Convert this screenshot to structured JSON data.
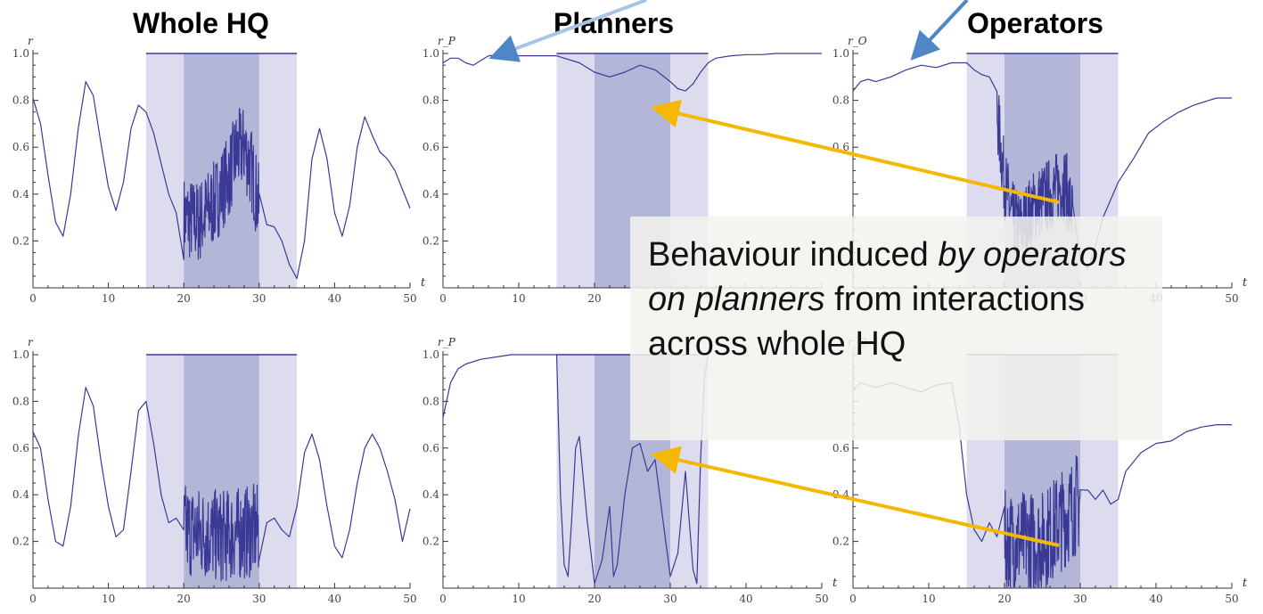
{
  "titles": {
    "whole": "Whole HQ",
    "planners": "Planners",
    "operators": "Operators"
  },
  "callout": {
    "part1": "Behaviour induced ",
    "part2": "by operators on planners",
    "part3": " from interactions across whole HQ"
  },
  "colors": {
    "line": "#3a3a96",
    "band_outer": "#dcdcee",
    "band_inner": "#b4b6d8",
    "arrow_orange": "#f5b800",
    "arrow_blue": "#4f86c6"
  },
  "chart_data": [
    {
      "type": "line",
      "row": 1,
      "col": 1,
      "ylabel": "r",
      "xlim": [
        0,
        50
      ],
      "ylim": [
        0,
        1
      ],
      "xticks": [
        0,
        10,
        20,
        30,
        40,
        50
      ],
      "yticks": [
        0.2,
        0.4,
        0.6,
        0.8,
        1.0
      ],
      "xlabel": "t",
      "bands": [
        [
          15,
          35
        ],
        [
          20,
          30
        ]
      ],
      "ref_line": {
        "y": 1.0,
        "x": [
          15,
          35
        ]
      },
      "series": [
        {
          "x": [
            0,
            1,
            2,
            3,
            4,
            5,
            6,
            7,
            8,
            9,
            10,
            11,
            12,
            13,
            14,
            15,
            16,
            17,
            18,
            19,
            20,
            22,
            24,
            26,
            27,
            28,
            29,
            30,
            31,
            32,
            33,
            34,
            35,
            36,
            37,
            38,
            39,
            40,
            41,
            42,
            43,
            44,
            45,
            46,
            47,
            48,
            49,
            50
          ],
          "y": [
            0.81,
            0.7,
            0.48,
            0.28,
            0.22,
            0.4,
            0.68,
            0.88,
            0.82,
            0.62,
            0.43,
            0.33,
            0.45,
            0.68,
            0.78,
            0.75,
            0.66,
            0.53,
            0.4,
            0.32,
            0.3,
            0.28,
            0.36,
            0.48,
            0.58,
            0.6,
            0.5,
            0.34,
            0.27,
            0.26,
            0.2,
            0.1,
            0.04,
            0.2,
            0.55,
            0.68,
            0.55,
            0.32,
            0.22,
            0.35,
            0.6,
            0.73,
            0.65,
            0.58,
            0.55,
            0.5,
            0.42,
            0.34
          ]
        }
      ],
      "noise": {
        "x": [
          20,
          30
        ],
        "amplitude": 0.18
      }
    },
    {
      "type": "line",
      "row": 1,
      "col": 2,
      "ylabel": "r_P",
      "xlim": [
        0,
        50
      ],
      "ylim": [
        0,
        1
      ],
      "xticks": [
        0,
        10,
        20
      ],
      "yticks": [
        0.2,
        0.4,
        0.6,
        0.8,
        1.0
      ],
      "xlabel": "",
      "bands": [
        [
          15,
          35
        ],
        [
          20,
          30
        ]
      ],
      "ref_line": {
        "y": 1.0,
        "x": [
          15,
          35
        ]
      },
      "series": [
        {
          "x": [
            0,
            1,
            2,
            3,
            4,
            5,
            6,
            8,
            10,
            12,
            14,
            15,
            16,
            18,
            20,
            22,
            24,
            26,
            28,
            30,
            31,
            32,
            33,
            34,
            35,
            36,
            38,
            40,
            42,
            44,
            46,
            48,
            50
          ],
          "y": [
            0.96,
            0.98,
            0.98,
            0.96,
            0.95,
            0.97,
            0.99,
            0.995,
            0.99,
            0.99,
            0.99,
            0.99,
            0.98,
            0.96,
            0.92,
            0.9,
            0.92,
            0.95,
            0.93,
            0.88,
            0.85,
            0.84,
            0.87,
            0.92,
            0.96,
            0.98,
            0.99,
            0.995,
            0.995,
            1.0,
            1.0,
            1.0,
            1.0
          ]
        }
      ],
      "noise": null
    },
    {
      "type": "line",
      "row": 1,
      "col": 3,
      "ylabel": "r_O",
      "xlim": [
        0,
        50
      ],
      "ylim": [
        0,
        1
      ],
      "xticks": [
        30,
        40,
        50
      ],
      "yticks": [
        0.6,
        0.8,
        1.0
      ],
      "xlabel": "t",
      "bands": [
        [
          15,
          35
        ],
        [
          20,
          30
        ]
      ],
      "ref_line": {
        "y": 1.0,
        "x": [
          15,
          35
        ]
      },
      "series": [
        {
          "x": [
            0,
            1,
            2,
            3,
            5,
            7,
            9,
            11,
            13,
            15,
            16,
            17,
            18,
            19,
            20,
            21,
            22,
            24,
            26,
            28,
            29,
            30,
            31,
            32,
            33,
            35,
            37,
            39,
            41,
            43,
            45,
            47,
            48,
            50
          ],
          "y": [
            0.84,
            0.88,
            0.89,
            0.88,
            0.9,
            0.93,
            0.95,
            0.94,
            0.96,
            0.96,
            0.93,
            0.91,
            0.9,
            0.75,
            0.45,
            0.3,
            0.25,
            0.35,
            0.4,
            0.45,
            0.3,
            0.12,
            0.08,
            0.18,
            0.3,
            0.45,
            0.55,
            0.66,
            0.71,
            0.75,
            0.78,
            0.8,
            0.81,
            0.81
          ]
        }
      ],
      "noise": {
        "x": [
          19,
          29
        ],
        "amplitude": 0.16
      }
    },
    {
      "type": "line",
      "row": 2,
      "col": 1,
      "ylabel": "r",
      "xlim": [
        0,
        50
      ],
      "ylim": [
        0,
        1
      ],
      "xticks": [
        0,
        10,
        20,
        30,
        40,
        50
      ],
      "yticks": [
        0.2,
        0.4,
        0.6,
        0.8,
        1.0
      ],
      "xlabel": "",
      "bands": [
        [
          15,
          35
        ],
        [
          20,
          30
        ]
      ],
      "ref_line": {
        "y": 1.0,
        "x": [
          15,
          35
        ]
      },
      "series": [
        {
          "x": [
            0,
            1,
            2,
            3,
            4,
            5,
            6,
            7,
            8,
            9,
            10,
            11,
            12,
            13,
            14,
            15,
            16,
            17,
            18,
            19,
            20,
            25,
            30,
            31,
            32,
            33,
            34,
            35,
            36,
            37,
            38,
            39,
            40,
            41,
            42,
            43,
            44,
            45,
            46,
            47,
            48,
            49,
            50
          ],
          "y": [
            0.67,
            0.6,
            0.38,
            0.2,
            0.18,
            0.35,
            0.65,
            0.86,
            0.78,
            0.55,
            0.35,
            0.22,
            0.25,
            0.5,
            0.76,
            0.8,
            0.62,
            0.4,
            0.28,
            0.3,
            0.25,
            0.22,
            0.25,
            0.28,
            0.3,
            0.25,
            0.22,
            0.35,
            0.58,
            0.66,
            0.55,
            0.35,
            0.18,
            0.13,
            0.25,
            0.45,
            0.6,
            0.66,
            0.6,
            0.5,
            0.38,
            0.2,
            0.34
          ]
        }
      ],
      "noise": {
        "x": [
          20,
          30
        ],
        "amplitude": 0.2
      }
    },
    {
      "type": "line",
      "row": 2,
      "col": 2,
      "ylabel": "r_P",
      "xlim": [
        0,
        50
      ],
      "ylim": [
        0,
        1
      ],
      "xticks": [
        0,
        10,
        20,
        30,
        40,
        50
      ],
      "yticks": [
        0.2,
        0.4,
        0.6,
        0.8,
        1.0
      ],
      "xlabel": "t",
      "bands": [
        [
          15,
          35
        ],
        [
          20,
          30
        ]
      ],
      "ref_line": {
        "y": 1.0,
        "x": [
          15,
          35
        ]
      },
      "series": [
        {
          "x": [
            0,
            1,
            2,
            3,
            5,
            7,
            9,
            11,
            13,
            14,
            15,
            15.5,
            16,
            16.5,
            17,
            17.5,
            18,
            19,
            20,
            21,
            22,
            22.5,
            23,
            24,
            25,
            26,
            27,
            28,
            29,
            30,
            31,
            32,
            33,
            33.5,
            34,
            34.5,
            35
          ],
          "y": [
            0.73,
            0.88,
            0.94,
            0.96,
            0.98,
            0.99,
            1.0,
            1.0,
            1.0,
            1.0,
            1.0,
            0.4,
            0.1,
            0.05,
            0.3,
            0.6,
            0.65,
            0.3,
            0.02,
            0.12,
            0.35,
            0.05,
            0.1,
            0.4,
            0.6,
            0.62,
            0.5,
            0.55,
            0.3,
            0.05,
            0.15,
            0.5,
            0.08,
            0.02,
            0.55,
            0.9,
            1.0
          ]
        }
      ],
      "noise": null
    },
    {
      "type": "line",
      "row": 2,
      "col": 3,
      "ylabel": "r_O",
      "xlim": [
        0,
        50
      ],
      "ylim": [
        0,
        1
      ],
      "xticks": [
        0,
        10,
        20,
        30,
        40,
        50
      ],
      "yticks": [
        0.2,
        0.4,
        0.6
      ],
      "xlabel": "t",
      "bands": [
        [
          15,
          35
        ],
        [
          20,
          30
        ]
      ],
      "ref_line": {
        "y": 1.0,
        "x": [
          15,
          35
        ]
      },
      "series": [
        {
          "x": [
            0,
            1,
            2,
            3,
            5,
            7,
            9,
            11,
            13,
            14,
            15,
            16,
            17,
            18,
            19,
            20,
            25,
            30,
            31,
            32,
            33,
            34,
            35,
            36,
            38,
            40,
            42,
            44,
            46,
            48,
            50
          ],
          "y": [
            0.85,
            0.88,
            0.87,
            0.86,
            0.88,
            0.86,
            0.84,
            0.87,
            0.88,
            0.7,
            0.4,
            0.25,
            0.2,
            0.28,
            0.22,
            0.2,
            0.2,
            0.38,
            0.42,
            0.38,
            0.42,
            0.36,
            0.38,
            0.5,
            0.58,
            0.62,
            0.63,
            0.67,
            0.69,
            0.7,
            0.7
          ]
        }
      ],
      "noise": {
        "x": [
          20,
          30
        ],
        "amplitude": 0.22
      }
    }
  ]
}
